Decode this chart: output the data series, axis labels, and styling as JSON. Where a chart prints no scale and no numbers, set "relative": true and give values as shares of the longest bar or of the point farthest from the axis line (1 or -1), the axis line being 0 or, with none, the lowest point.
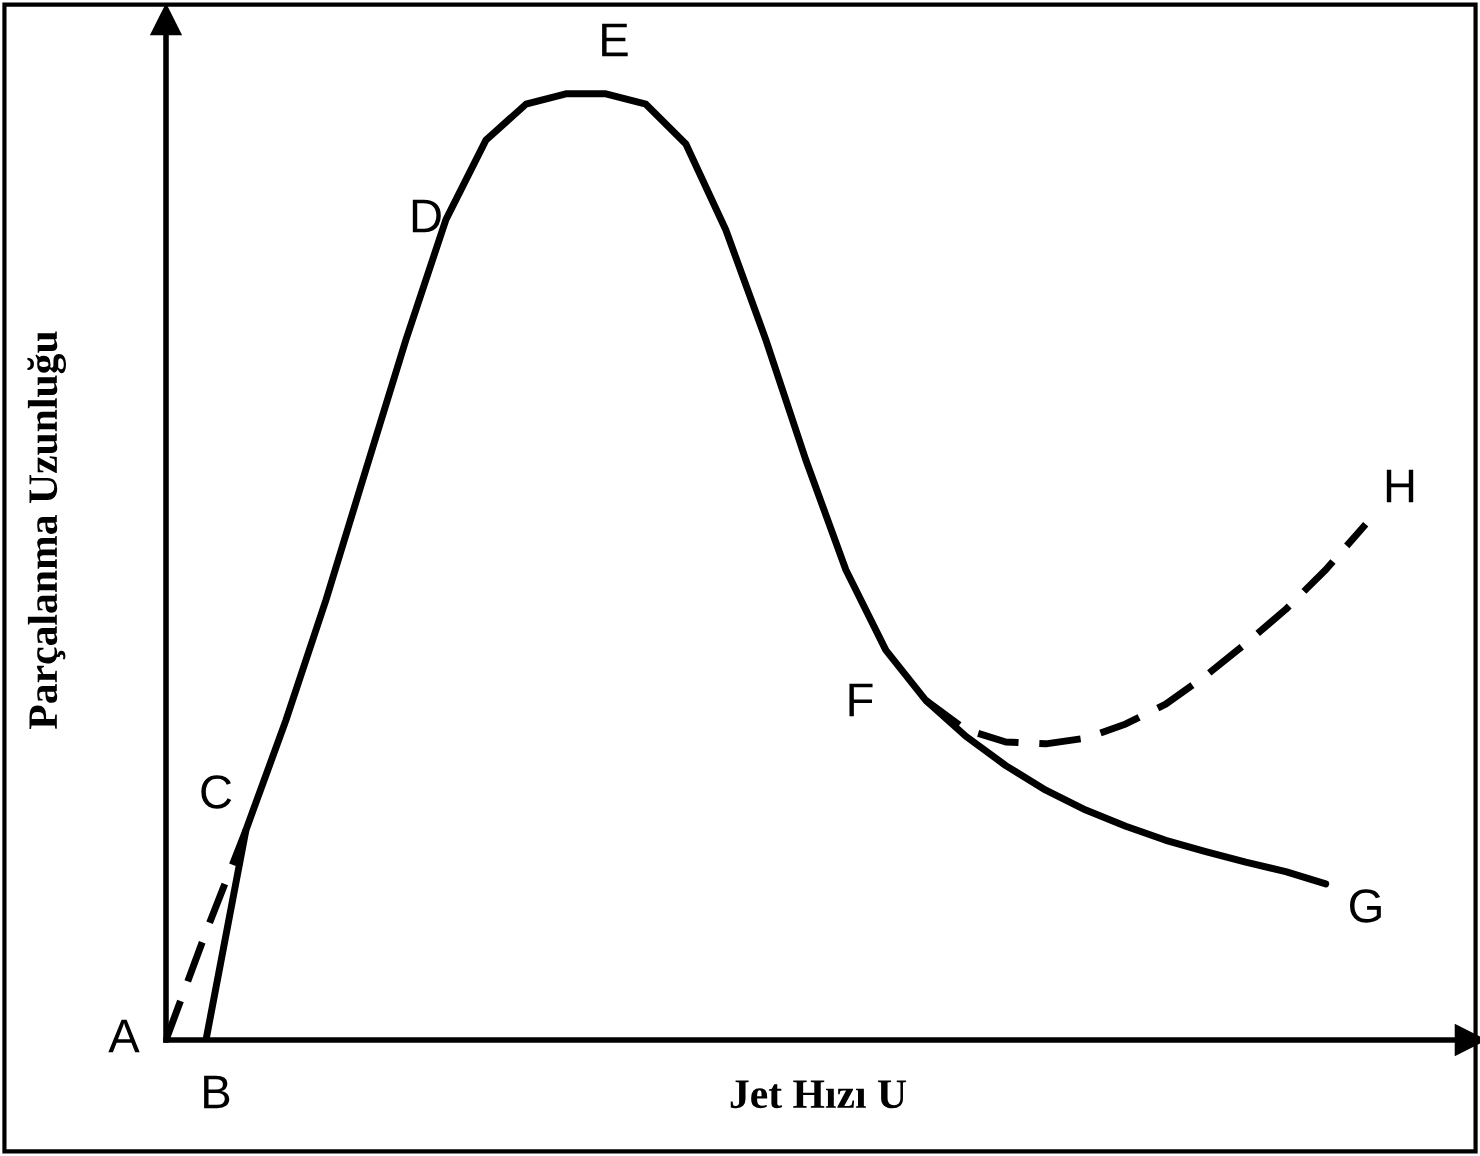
{
  "chart_data": {
    "type": "line",
    "relative": true,
    "xlabel": "Jet Hızı U",
    "ylabel": "Parçalanma Uzunluğu",
    "tick_labels": false,
    "marker": "none",
    "categories": [
      null,
      null,
      null,
      null,
      null,
      null,
      null,
      null,
      null,
      null,
      null,
      null,
      null,
      null,
      null,
      null,
      null,
      null,
      null,
      null,
      null,
      null,
      null,
      null,
      null,
      null,
      null,
      null,
      null,
      null,
      null,
      null,
      null
    ],
    "series": [
      {
        "color": "#000000",
        "line_style": "solid",
        "values": [
          null,
          0,
          0.222,
          0.338,
          0.465,
          0.603,
          0.74,
          0.867,
          0.951,
          0.989,
          1.0,
          1.0,
          0.989,
          0.947,
          0.856,
          0.74,
          0.613,
          0.497,
          0.412,
          0.359,
          0.321,
          0.29,
          0.264,
          0.243,
          0.226,
          0.211,
          0.199,
          0.188,
          0.178,
          0.165,
          null,
          null,
          null
        ]
      },
      {
        "color": "#000000",
        "line_style": "dashed",
        "values": [
          0,
          0.114,
          0.222,
          null,
          null,
          null,
          null,
          null,
          null,
          null,
          null,
          null,
          null,
          null,
          null,
          null,
          null,
          null,
          null,
          null,
          null,
          null,
          null,
          null,
          null,
          null,
          null,
          null,
          null,
          null,
          null,
          null,
          null
        ]
      },
      {
        "color": "#000000",
        "line_style": "dashed",
        "values": [
          null,
          null,
          null,
          null,
          null,
          null,
          null,
          null,
          null,
          null,
          null,
          null,
          null,
          null,
          null,
          null,
          null,
          null,
          null,
          0.359,
          0.328,
          0.315,
          0.313,
          0.319,
          0.334,
          0.355,
          0.385,
          0.419,
          0.455,
          0.497,
          0.545,
          null,
          null
        ]
      }
    ],
    "annotations": [
      "A",
      "B",
      "C",
      "D",
      "E",
      "F",
      "G",
      "H"
    ]
  }
}
